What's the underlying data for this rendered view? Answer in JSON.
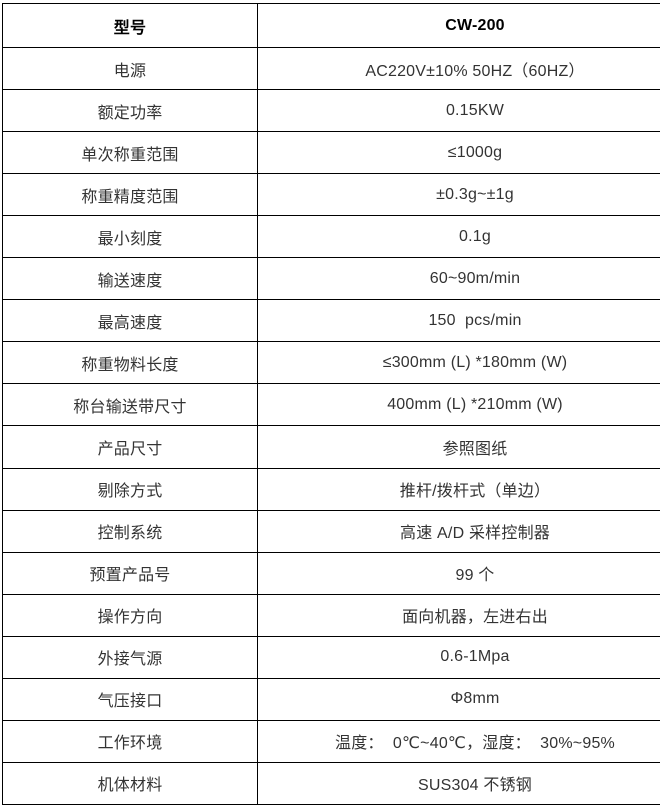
{
  "colors": {
    "background": "#ffffff",
    "border": "#000000",
    "text": "#333333",
    "header_text": "#000000"
  },
  "table": {
    "name": "product-spec-table",
    "rows": [
      {
        "label": "型号",
        "value": "CW-200",
        "header": true
      },
      {
        "label": "电源",
        "value": "AC220V±10% 50HZ（60HZ）",
        "header": false
      },
      {
        "label": "额定功率",
        "value": "0.15KW",
        "header": false
      },
      {
        "label": "单次称重范围",
        "value": "≤1000g",
        "header": false
      },
      {
        "label": "称重精度范围",
        "value": "±0.3g~±1g",
        "header": false
      },
      {
        "label": "最小刻度",
        "value": "0.1g",
        "header": false
      },
      {
        "label": "输送速度",
        "value": "60~90m/min",
        "header": false
      },
      {
        "label": "最高速度",
        "value": "150  pcs/min",
        "header": false
      },
      {
        "label": "称重物料长度",
        "value": "≤300mm (L) *180mm (W)",
        "header": false
      },
      {
        "label": "称台输送带尺寸",
        "value": "400mm (L) *210mm (W)",
        "header": false
      },
      {
        "label": "产品尺寸",
        "value": "参照图纸",
        "header": false
      },
      {
        "label": "剔除方式",
        "value": "推杆/拨杆式（单边）",
        "header": false
      },
      {
        "label": "控制系统",
        "value": "高速 A/D 采样控制器",
        "header": false
      },
      {
        "label": "预置产品号",
        "value": "99 个",
        "header": false
      },
      {
        "label": "操作方向",
        "value": "面向机器，左进右出",
        "header": false
      },
      {
        "label": "外接气源",
        "value": "0.6-1Mpa",
        "header": false
      },
      {
        "label": "气压接口",
        "value": "Φ8mm",
        "header": false
      },
      {
        "label": "工作环境",
        "value": "温度：  0℃~40℃，湿度：  30%~95%",
        "header": false
      },
      {
        "label": "机体材料",
        "value": "SUS304 不锈钢",
        "header": false
      }
    ]
  }
}
